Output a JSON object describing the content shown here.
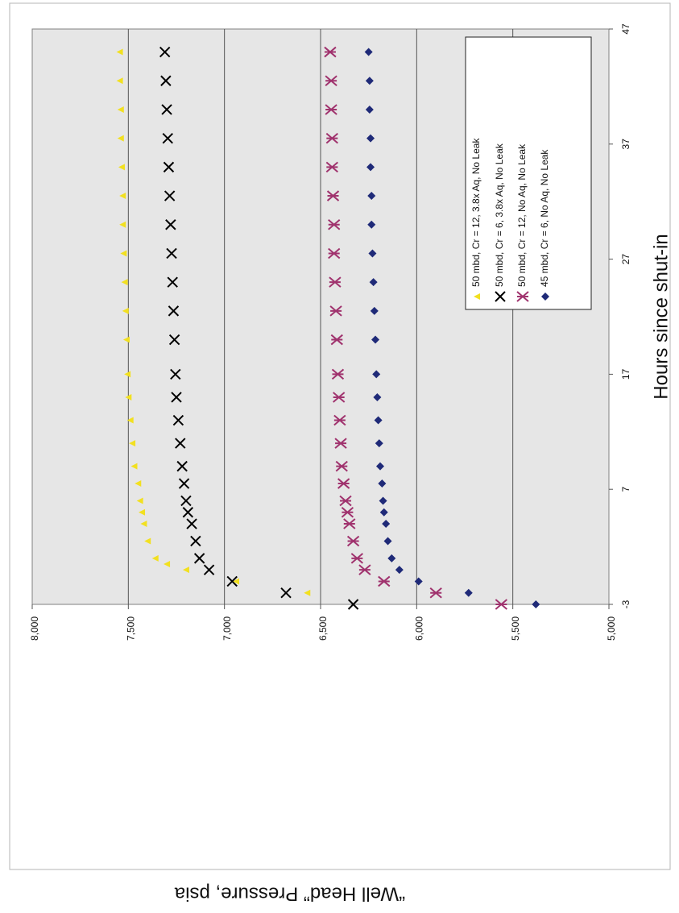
{
  "chart_data": {
    "type": "scatter",
    "xlabel": "Hours since shut-in",
    "ylabel": "“Well Head” Pressure, psia",
    "xlim": [
      -3,
      47
    ],
    "ylim": [
      5000,
      8000
    ],
    "x_ticks": [
      -3,
      7,
      17,
      27,
      37,
      47
    ],
    "y_ticks": [
      5000,
      5500,
      6000,
      6500,
      7000,
      7500,
      8000
    ],
    "y_tick_labels": [
      "5,000",
      "5,500",
      "6,000",
      "6,500",
      "7,000",
      "7,500",
      "8,000"
    ],
    "grid": true,
    "background": "#e6e6e6",
    "legend_position": "top-right",
    "series": [
      {
        "name": "50 mbd, Cr = 12, 3.8x Aq, No Leak",
        "marker": "triangle",
        "color": "#f2e020",
        "points": [
          [
            -2,
            6570
          ],
          [
            -1,
            6940
          ],
          [
            0,
            7200
          ],
          [
            0.5,
            7300
          ],
          [
            1,
            7360
          ],
          [
            2.5,
            7400
          ],
          [
            4,
            7420
          ],
          [
            5,
            7430
          ],
          [
            6,
            7440
          ],
          [
            7.5,
            7450
          ],
          [
            9,
            7470
          ],
          [
            11,
            7480
          ],
          [
            13,
            7490
          ],
          [
            15,
            7500
          ],
          [
            17,
            7505
          ],
          [
            20,
            7510
          ],
          [
            22.5,
            7515
          ],
          [
            25,
            7520
          ],
          [
            27.5,
            7525
          ],
          [
            30,
            7530
          ],
          [
            32.5,
            7530
          ],
          [
            35,
            7535
          ],
          [
            37.5,
            7540
          ],
          [
            40,
            7540
          ],
          [
            42.5,
            7545
          ],
          [
            45,
            7545
          ]
        ]
      },
      {
        "name": "50 mbd, Cr = 6, 3.8x Aq, No Leak",
        "marker": "x",
        "color": "#000000",
        "points": [
          [
            -3,
            6330
          ],
          [
            -2,
            6680
          ],
          [
            -1,
            6960
          ],
          [
            0,
            7080
          ],
          [
            1,
            7130
          ],
          [
            2.5,
            7150
          ],
          [
            4,
            7170
          ],
          [
            5,
            7190
          ],
          [
            6,
            7200
          ],
          [
            7.5,
            7210
          ],
          [
            9,
            7220
          ],
          [
            11,
            7230
          ],
          [
            13,
            7240
          ],
          [
            15,
            7250
          ],
          [
            17,
            7255
          ],
          [
            20,
            7260
          ],
          [
            22.5,
            7265
          ],
          [
            25,
            7270
          ],
          [
            27.5,
            7275
          ],
          [
            30,
            7280
          ],
          [
            32.5,
            7285
          ],
          [
            35,
            7290
          ],
          [
            37.5,
            7295
          ],
          [
            40,
            7300
          ],
          [
            42.5,
            7305
          ],
          [
            45,
            7310
          ]
        ]
      },
      {
        "name": "50 mbd, Cr = 12, No Aq, No Leak",
        "marker": "asterisk",
        "color": "#a0336e",
        "points": [
          [
            -3,
            5560
          ],
          [
            -2,
            5900
          ],
          [
            -1,
            6170
          ],
          [
            0,
            6270
          ],
          [
            1,
            6310
          ],
          [
            2.5,
            6330
          ],
          [
            4,
            6350
          ],
          [
            5,
            6360
          ],
          [
            6,
            6370
          ],
          [
            7.5,
            6380
          ],
          [
            9,
            6390
          ],
          [
            11,
            6395
          ],
          [
            13,
            6400
          ],
          [
            15,
            6405
          ],
          [
            17,
            6410
          ],
          [
            20,
            6415
          ],
          [
            22.5,
            6420
          ],
          [
            25,
            6425
          ],
          [
            27.5,
            6430
          ],
          [
            30,
            6430
          ],
          [
            32.5,
            6435
          ],
          [
            35,
            6440
          ],
          [
            37.5,
            6440
          ],
          [
            40,
            6445
          ],
          [
            42.5,
            6445
          ],
          [
            45,
            6450
          ]
        ]
      },
      {
        "name": "45 mbd, Cr = 6, No Aq, No Leak",
        "marker": "diamond",
        "color": "#1f2a78",
        "points": [
          [
            -3,
            5380
          ],
          [
            -2,
            5730
          ],
          [
            -1,
            5990
          ],
          [
            0,
            6090
          ],
          [
            1,
            6130
          ],
          [
            2.5,
            6150
          ],
          [
            4,
            6160
          ],
          [
            5,
            6170
          ],
          [
            6,
            6175
          ],
          [
            7.5,
            6180
          ],
          [
            9,
            6190
          ],
          [
            11,
            6195
          ],
          [
            13,
            6200
          ],
          [
            15,
            6205
          ],
          [
            17,
            6210
          ],
          [
            20,
            6215
          ],
          [
            22.5,
            6220
          ],
          [
            25,
            6225
          ],
          [
            27.5,
            6230
          ],
          [
            30,
            6235
          ],
          [
            32.5,
            6235
          ],
          [
            35,
            6240
          ],
          [
            37.5,
            6240
          ],
          [
            40,
            6245
          ],
          [
            42.5,
            6245
          ],
          [
            45,
            6250
          ]
        ]
      }
    ]
  }
}
